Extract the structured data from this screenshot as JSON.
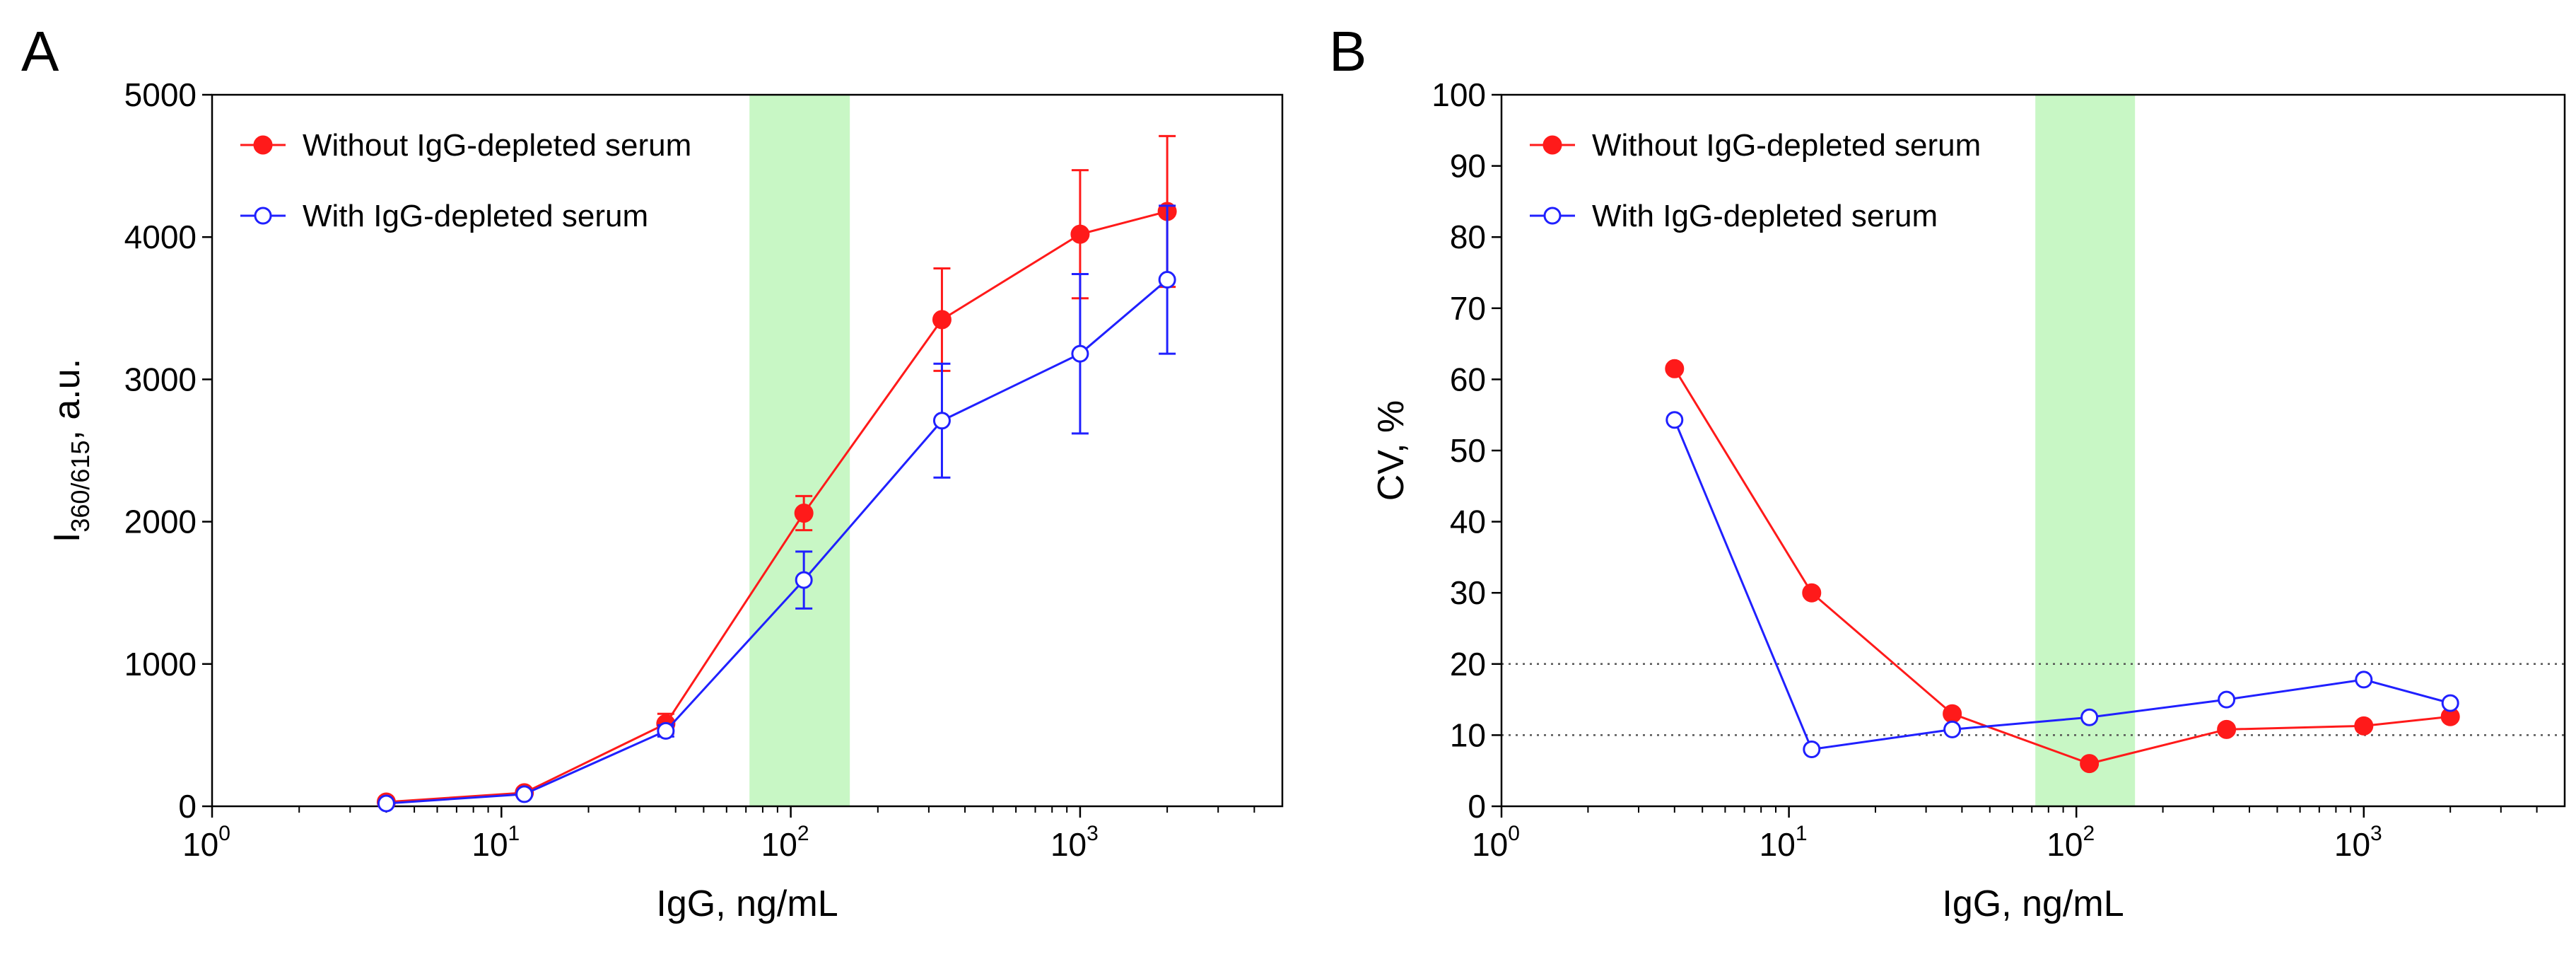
{
  "chart_data": [
    {
      "panel": "A",
      "type": "line",
      "xscale": "log",
      "xlim": [
        1,
        5000
      ],
      "ylim": [
        0,
        5000
      ],
      "xlabel": "IgG, ng/mL",
      "ylabel": {
        "main": "I",
        "subscript": "360/615",
        "suffix": ", a.u."
      },
      "xticks": [
        {
          "base": "10",
          "exp": "0",
          "value": 1
        },
        {
          "base": "10",
          "exp": "1",
          "value": 10
        },
        {
          "base": "10",
          "exp": "2",
          "value": 100
        },
        {
          "base": "10",
          "exp": "3",
          "value": 1000
        }
      ],
      "yticks": [
        0,
        1000,
        2000,
        3000,
        4000,
        5000
      ],
      "highlight_band": {
        "from": 72,
        "to": 160,
        "color": "#c8f7c5"
      },
      "legend_position": "top-left",
      "series": [
        {
          "name": "Without IgG-depleted serum",
          "color": "#ff1a1a",
          "marker": "filled-circle",
          "x": [
            4,
            12,
            37,
            111,
            333,
            1000,
            2000
          ],
          "y": [
            30,
            95,
            580,
            2060,
            3420,
            4020,
            4180
          ],
          "error": [
            0,
            0,
            70,
            120,
            360,
            450,
            530
          ]
        },
        {
          "name": "With IgG-depleted serum",
          "color": "#2020ff",
          "marker": "open-circle",
          "x": [
            4,
            12,
            37,
            111,
            333,
            1000,
            2000
          ],
          "y": [
            20,
            85,
            530,
            1590,
            2710,
            3180,
            3700
          ],
          "error": [
            0,
            0,
            40,
            200,
            400,
            560,
            520
          ]
        }
      ]
    },
    {
      "panel": "B",
      "type": "line",
      "xscale": "log",
      "xlim": [
        1,
        5000
      ],
      "ylim": [
        0,
        100
      ],
      "xlabel": "IgG, ng/mL",
      "ylabel": {
        "main": "CV, %",
        "subscript": "",
        "suffix": ""
      },
      "xticks": [
        {
          "base": "10",
          "exp": "0",
          "value": 1
        },
        {
          "base": "10",
          "exp": "1",
          "value": 10
        },
        {
          "base": "10",
          "exp": "2",
          "value": 100
        },
        {
          "base": "10",
          "exp": "3",
          "value": 1000
        }
      ],
      "yticks": [
        0,
        10,
        20,
        30,
        40,
        50,
        60,
        70,
        80,
        90,
        100
      ],
      "highlight_band": {
        "from": 72,
        "to": 160,
        "color": "#c8f7c5"
      },
      "reference_lines": [
        10,
        20
      ],
      "legend_position": "top-left",
      "series": [
        {
          "name": "Without IgG-depleted serum",
          "color": "#ff1a1a",
          "marker": "filled-circle",
          "x": [
            4,
            12,
            37,
            111,
            333,
            1000,
            2000
          ],
          "y": [
            61.5,
            30,
            13,
            6,
            10.8,
            11.3,
            12.6
          ]
        },
        {
          "name": "With IgG-depleted serum",
          "color": "#2020ff",
          "marker": "open-circle",
          "x": [
            4,
            12,
            37,
            111,
            333,
            1000,
            2000
          ],
          "y": [
            54.3,
            8,
            10.8,
            12.5,
            15,
            17.8,
            14.5
          ]
        }
      ]
    }
  ]
}
